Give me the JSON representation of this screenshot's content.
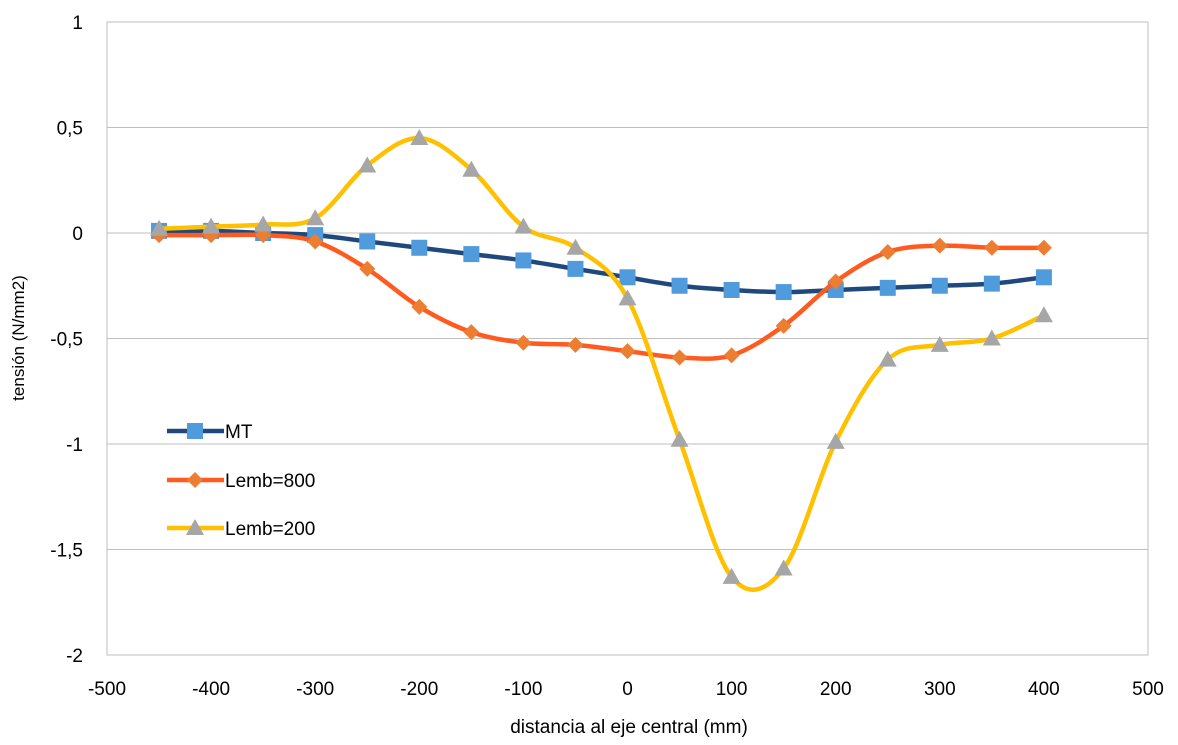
{
  "chart_data": {
    "type": "line",
    "title": "",
    "xlabel": "distancia al eje central (mm)",
    "ylabel": "tensión (N/mm2)",
    "xlim": [
      -500,
      500
    ],
    "ylim": [
      -2,
      1
    ],
    "x_ticks": [
      -500,
      -400,
      -300,
      -200,
      -100,
      0,
      100,
      200,
      300,
      400,
      500
    ],
    "x_tick_labels": [
      "-500",
      "-400",
      "-300",
      "-200",
      "-100",
      "0",
      "100",
      "200",
      "300",
      "400",
      "500"
    ],
    "y_ticks": [
      1,
      0.5,
      0,
      -0.5,
      -1,
      -1.5,
      -2
    ],
    "y_tick_labels": [
      "1",
      "0,5",
      "0",
      "-0,5",
      "-1",
      "-1,5",
      "-2"
    ],
    "grid": "horizontal",
    "legend_position": "lower-left",
    "x": [
      -450,
      -400,
      -350,
      -300,
      -250,
      -200,
      -150,
      -100,
      -50,
      0,
      50,
      100,
      150,
      200,
      250,
      300,
      350,
      400
    ],
    "series": [
      {
        "name": "MT",
        "line_color": "#1F497D",
        "marker_color": "#4F9BDB",
        "marker": "square",
        "values": [
          0.01,
          0.01,
          0.0,
          -0.01,
          -0.04,
          -0.07,
          -0.1,
          -0.13,
          -0.17,
          -0.21,
          -0.25,
          -0.27,
          -0.28,
          -0.27,
          -0.26,
          -0.25,
          -0.24,
          -0.21
        ]
      },
      {
        "name": "Lemb=800",
        "line_color": "#FF5A1F",
        "marker_color": "#ED7D31",
        "marker": "diamond",
        "values": [
          -0.01,
          -0.01,
          -0.01,
          -0.04,
          -0.17,
          -0.35,
          -0.47,
          -0.52,
          -0.53,
          -0.56,
          -0.59,
          -0.58,
          -0.44,
          -0.23,
          -0.09,
          -0.06,
          -0.07,
          -0.07
        ]
      },
      {
        "name": "Lemb=200",
        "line_color": "#FFC000",
        "marker_color": "#A6A6A6",
        "marker": "triangle",
        "values": [
          0.02,
          0.03,
          0.04,
          0.07,
          0.32,
          0.45,
          0.3,
          0.03,
          -0.07,
          -0.31,
          -0.98,
          -1.63,
          -1.59,
          -0.99,
          -0.6,
          -0.53,
          -0.5,
          -0.39
        ]
      }
    ]
  }
}
